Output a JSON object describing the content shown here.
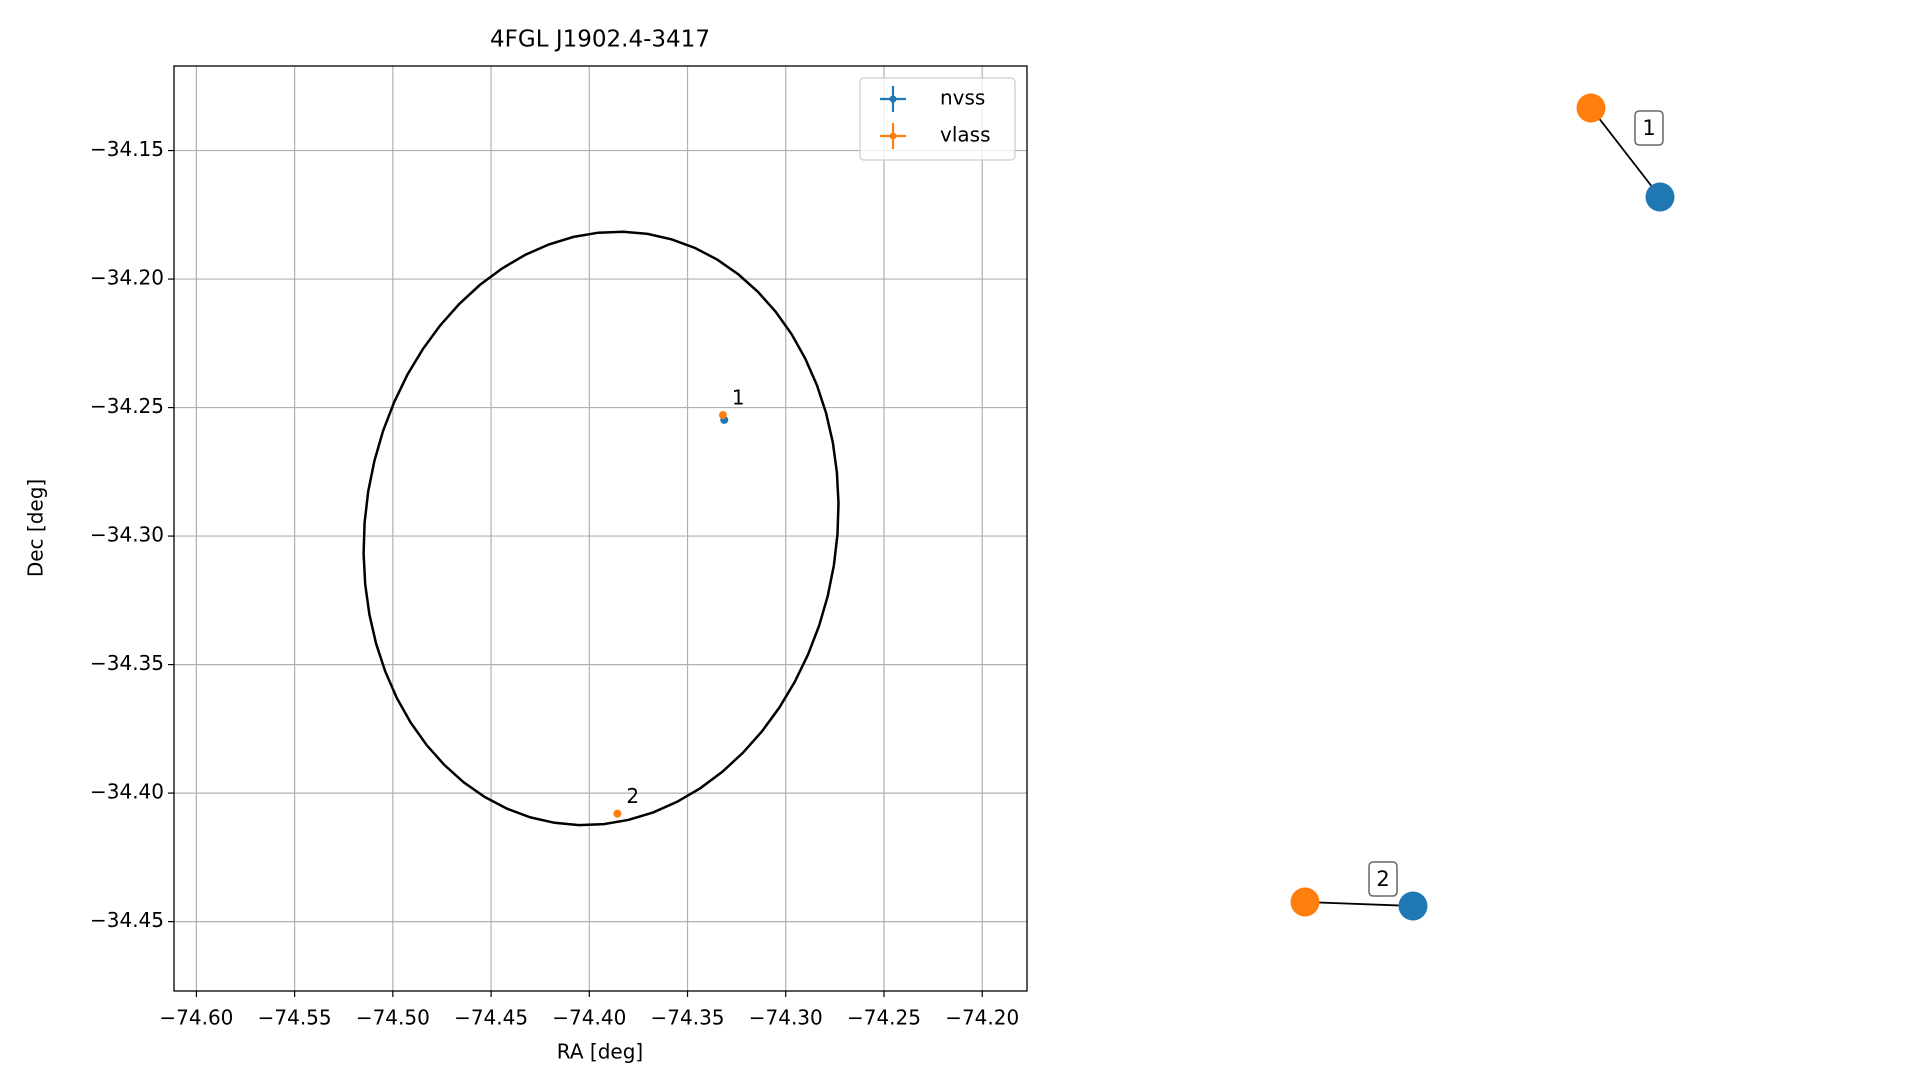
{
  "chart_data": {
    "type": "scatter",
    "title": "4FGL J1902.4-3417",
    "x_label": "RA [deg]",
    "y_label": "Dec [deg]",
    "xlim": [
      -74.6114,
      -74.1772
    ],
    "ylim": [
      -34.477,
      -34.1171
    ],
    "xticks": [
      {
        "value": -74.6,
        "label": "−74.60"
      },
      {
        "value": -74.55,
        "label": "−74.55"
      },
      {
        "value": -74.5,
        "label": "−74.50"
      },
      {
        "value": -74.45,
        "label": "−74.45"
      },
      {
        "value": -74.4,
        "label": "−74.40"
      },
      {
        "value": -74.35,
        "label": "−74.35"
      },
      {
        "value": -74.3,
        "label": "−74.30"
      },
      {
        "value": -74.25,
        "label": "−74.25"
      },
      {
        "value": -74.2,
        "label": "−74.20"
      }
    ],
    "yticks": [
      {
        "value": -34.15,
        "label": "−34.15"
      },
      {
        "value": -34.2,
        "label": "−34.20"
      },
      {
        "value": -34.25,
        "label": "−34.25"
      },
      {
        "value": -34.3,
        "label": "−34.30"
      },
      {
        "value": -34.35,
        "label": "−34.35"
      },
      {
        "value": -34.4,
        "label": "−34.40"
      },
      {
        "value": -34.45,
        "label": "−34.45"
      }
    ],
    "grid": true,
    "legend": "upper right",
    "series": [
      {
        "name": "nvss",
        "color": "#1f77b4",
        "x": [
          -74.3313
        ],
        "values": [
          -34.2548
        ]
      },
      {
        "name": "vlass",
        "color": "#ff7f0e",
        "x": [
          -74.332,
          -74.3857
        ],
        "values": [
          -34.2529,
          -34.408
        ],
        "point_labels": [
          "1",
          "2"
        ]
      }
    ],
    "ellipse": {
      "ra": -74.394,
      "dec": -34.297,
      "ra_radius": 0.12,
      "dec_radius": 0.116,
      "angle": 9,
      "color": "#000000"
    }
  },
  "network": {
    "edges": [
      {
        "label": "1"
      },
      {
        "label": "2"
      }
    ]
  }
}
